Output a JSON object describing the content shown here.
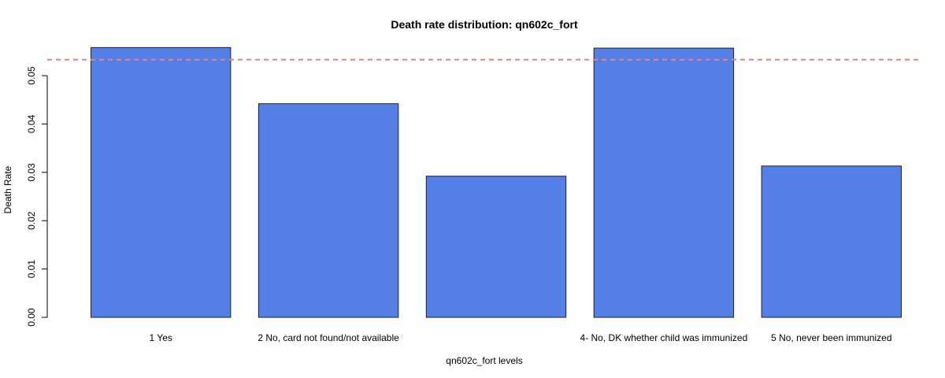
{
  "chart_data": {
    "type": "bar",
    "title": "Death rate distribution: qn602c_fort",
    "xlabel": "qn602c_fort levels",
    "ylabel": "Death Rate",
    "categories": [
      "1  Yes",
      "2 No, card not found/not available",
      "",
      "4- No, DK whether child was immunized",
      "5 No, never been immunized"
    ],
    "values": [
      0.0558,
      0.0442,
      0.0292,
      0.0557,
      0.0313
    ],
    "ylim": [
      0,
      0.0575
    ],
    "yticks": [
      0.0,
      0.01,
      0.02,
      0.03,
      0.04,
      0.05
    ],
    "ytick_labels": [
      "0.00",
      "0.01",
      "0.02",
      "0.03",
      "0.04",
      "0.05"
    ],
    "reference_line": {
      "value": 0.0533,
      "style": "dashed",
      "color": "#f08080"
    },
    "bar_color": "#537fe7",
    "grid": false,
    "legend": "none"
  }
}
